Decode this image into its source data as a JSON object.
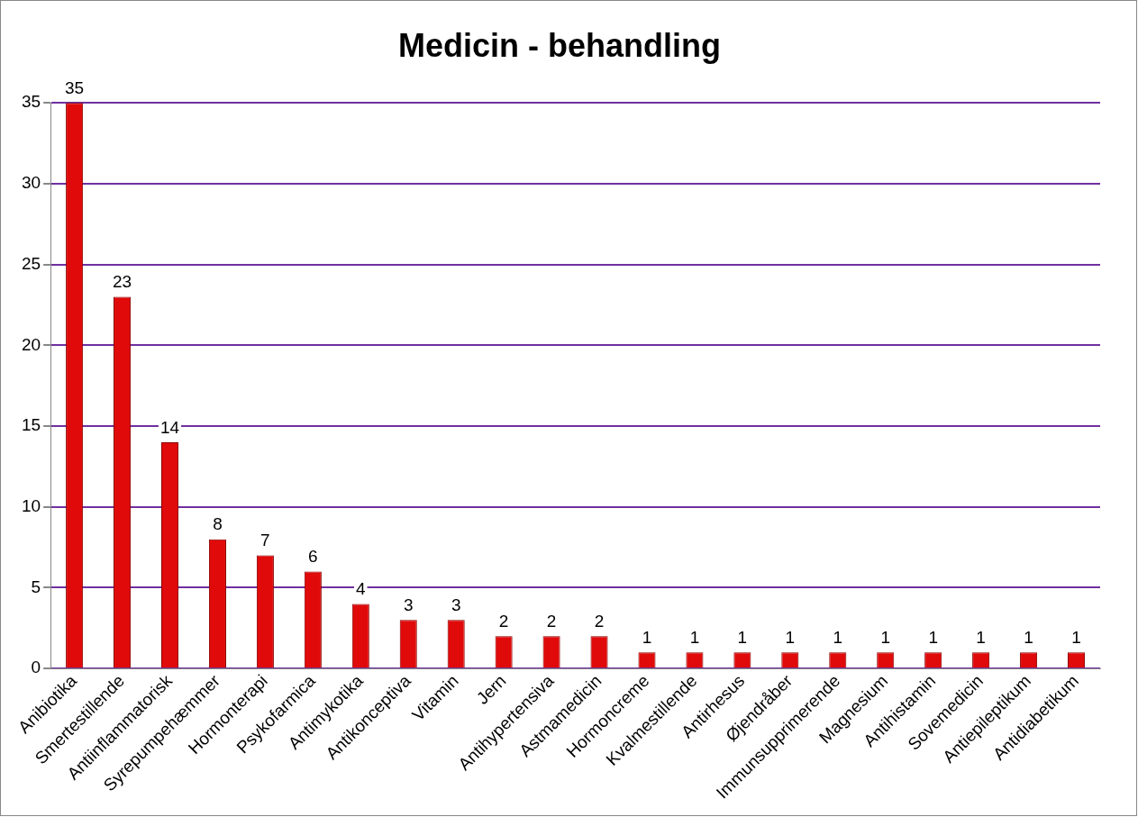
{
  "chart_data": {
    "type": "bar",
    "title": "Medicin - behandling",
    "categories": [
      "Anibiotika",
      "Smertestillende",
      "Antiinflammatorisk",
      "Syrepumpehæmmer",
      "Hormonterapi",
      "Psykofarmica",
      "Antimykotika",
      "Antikonceptiva",
      "Vitamin",
      "Jern",
      "Antihypertensiva",
      "Astmamedicin",
      "Hormoncreme",
      "Kvalmestillende",
      "Antirhesus",
      "Øjendråber",
      "Immunsupprimerende",
      "Magnesium",
      "Antihistamin",
      "Sovemedicin",
      "Antiepileptikum",
      "Antidiabetikum"
    ],
    "values": [
      35,
      23,
      14,
      8,
      7,
      6,
      4,
      3,
      3,
      2,
      2,
      2,
      1,
      1,
      1,
      1,
      1,
      1,
      1,
      1,
      1,
      1
    ],
    "color": "#e00a0a",
    "ylim": [
      0,
      35
    ],
    "yticks": [
      0,
      5,
      10,
      15,
      20,
      25,
      30,
      35
    ],
    "grid": "y",
    "legend": false,
    "data_labels": true
  }
}
